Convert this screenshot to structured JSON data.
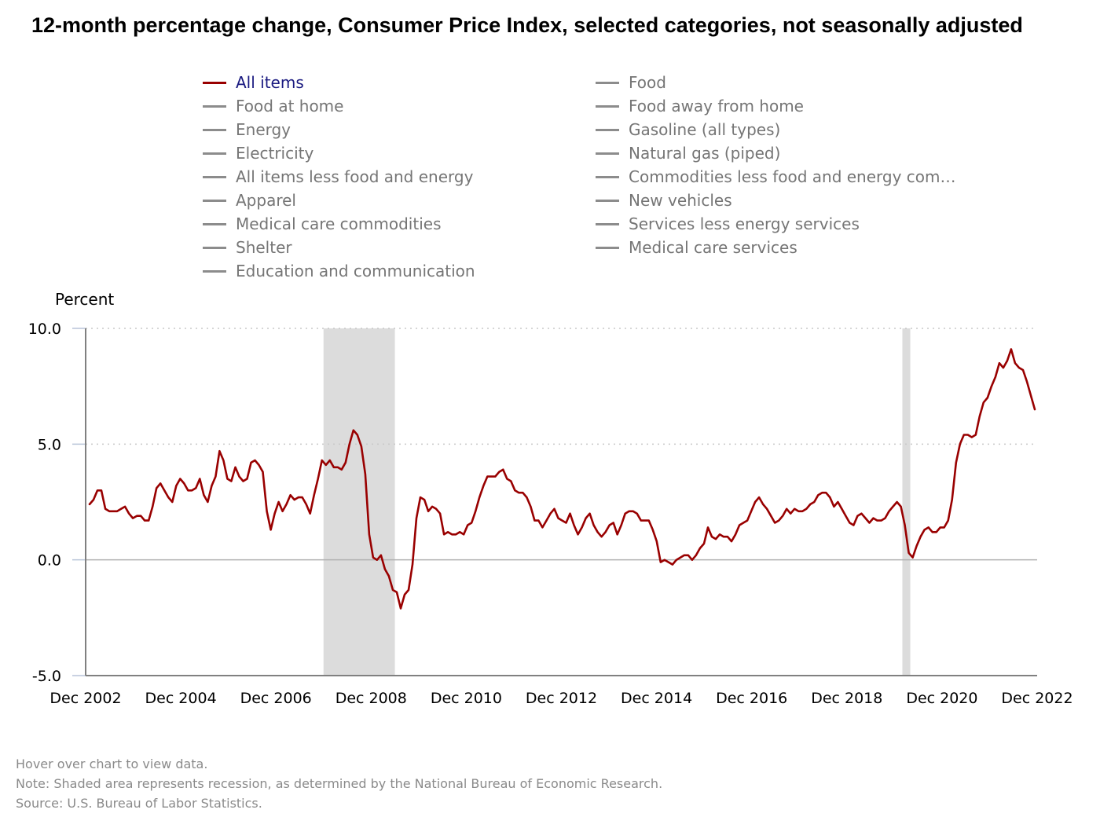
{
  "title": "12-month percentage change, Consumer Price Index, selected categories, not seasonally adjusted",
  "legend": {
    "items": [
      {
        "label": "All items",
        "active": true
      },
      {
        "label": "Food",
        "active": false
      },
      {
        "label": "Food at home",
        "active": false
      },
      {
        "label": "Food away from home",
        "active": false
      },
      {
        "label": "Energy",
        "active": false
      },
      {
        "label": "Gasoline (all types)",
        "active": false
      },
      {
        "label": "Electricity",
        "active": false
      },
      {
        "label": "Natural gas (piped)",
        "active": false
      },
      {
        "label": "All items less food and energy",
        "active": false
      },
      {
        "label": "Commodities less food and energy com…",
        "active": false
      },
      {
        "label": "Apparel",
        "active": false
      },
      {
        "label": "New vehicles",
        "active": false
      },
      {
        "label": "Medical care commodities",
        "active": false
      },
      {
        "label": "Services less energy services",
        "active": false
      },
      {
        "label": "Shelter",
        "active": false
      },
      {
        "label": "Medical care services",
        "active": false
      },
      {
        "label": "Education and communication",
        "active": false
      }
    ]
  },
  "footer": {
    "hover": "Hover over chart to view data.",
    "note": "Note: Shaded area represents recession, as determined by the National Bureau of Economic Research.",
    "source": "Source: U.S. Bureau of Labor Statistics."
  },
  "chart_data": {
    "type": "line",
    "title": "12-month percentage change, Consumer Price Index, selected categories, not seasonally adjusted",
    "ylabel": "Percent",
    "xlabel": "",
    "ylim": [
      -5.0,
      10.0
    ],
    "yticks": [
      "10.0",
      "5.0",
      "0.0",
      "-5.0"
    ],
    "ytick_values": [
      10.0,
      5.0,
      0.0,
      -5.0
    ],
    "xticks": [
      "Dec 2002",
      "Dec 2004",
      "Dec 2006",
      "Dec 2008",
      "Dec 2010",
      "Dec 2012",
      "Dec 2014",
      "Dec 2016",
      "Dec 2018",
      "Dec 2020",
      "Dec 2022"
    ],
    "x_start": "Dec 2002",
    "x_end": "Dec 2022",
    "grid": "horizontal dotted at 5.0 and 10.0; solid zero line",
    "recessions": [
      {
        "start": "Dec 2007",
        "end": "Jun 2009"
      },
      {
        "start": "Feb 2020",
        "end": "Apr 2020"
      }
    ],
    "colors": {
      "all_items": "#990000",
      "inactive": "#8c8c8c",
      "recession": "#dcdcdc",
      "axis": "#808080",
      "grid": "#c8c8c8"
    },
    "series": [
      {
        "name": "All items",
        "values": [
          2.4,
          2.6,
          3.0,
          3.0,
          2.2,
          2.1,
          2.1,
          2.1,
          2.2,
          2.3,
          2.0,
          1.8,
          1.9,
          1.9,
          1.7,
          1.7,
          2.3,
          3.1,
          3.3,
          3.0,
          2.7,
          2.5,
          3.2,
          3.5,
          3.3,
          3.0,
          3.0,
          3.1,
          3.5,
          2.8,
          2.5,
          3.2,
          3.6,
          4.7,
          4.3,
          3.5,
          3.4,
          4.0,
          3.6,
          3.4,
          3.5,
          4.2,
          4.3,
          4.1,
          3.8,
          2.1,
          1.3,
          2.0,
          2.5,
          2.1,
          2.4,
          2.8,
          2.6,
          2.7,
          2.7,
          2.4,
          2.0,
          2.8,
          3.5,
          4.3,
          4.1,
          4.3,
          4.0,
          4.0,
          3.9,
          4.2,
          5.0,
          5.6,
          5.4,
          4.9,
          3.7,
          1.1,
          0.1,
          0.0,
          0.2,
          -0.4,
          -0.7,
          -1.3,
          -1.4,
          -2.1,
          -1.5,
          -1.3,
          -0.2,
          1.8,
          2.7,
          2.6,
          2.1,
          2.3,
          2.2,
          2.0,
          1.1,
          1.2,
          1.1,
          1.1,
          1.2,
          1.1,
          1.5,
          1.6,
          2.1,
          2.7,
          3.2,
          3.6,
          3.6,
          3.6,
          3.8,
          3.9,
          3.5,
          3.4,
          3.0,
          2.9,
          2.9,
          2.7,
          2.3,
          1.7,
          1.7,
          1.4,
          1.7,
          2.0,
          2.2,
          1.8,
          1.7,
          1.6,
          2.0,
          1.5,
          1.1,
          1.4,
          1.8,
          2.0,
          1.5,
          1.2,
          1.0,
          1.2,
          1.5,
          1.6,
          1.1,
          1.5,
          2.0,
          2.1,
          2.1,
          2.0,
          1.7,
          1.7,
          1.7,
          1.3,
          0.8,
          -0.1,
          0.0,
          -0.1,
          -0.2,
          0.0,
          0.1,
          0.2,
          0.2,
          0.0,
          0.2,
          0.5,
          0.7,
          1.4,
          1.0,
          0.9,
          1.1,
          1.0,
          1.0,
          0.8,
          1.1,
          1.5,
          1.6,
          1.7,
          2.1,
          2.5,
          2.7,
          2.4,
          2.2,
          1.9,
          1.6,
          1.7,
          1.9,
          2.2,
          2.0,
          2.2,
          2.1,
          2.1,
          2.2,
          2.4,
          2.5,
          2.8,
          2.9,
          2.9,
          2.7,
          2.3,
          2.5,
          2.2,
          1.9,
          1.6,
          1.5,
          1.9,
          2.0,
          1.8,
          1.6,
          1.8,
          1.7,
          1.7,
          1.8,
          2.1,
          2.3,
          2.5,
          2.3,
          1.5,
          0.3,
          0.1,
          0.6,
          1.0,
          1.3,
          1.4,
          1.2,
          1.2,
          1.4,
          1.4,
          1.7,
          2.6,
          4.2,
          5.0,
          5.4,
          5.4,
          5.3,
          5.4,
          6.2,
          6.8,
          7.0,
          7.5,
          7.9,
          8.5,
          8.3,
          8.6,
          9.1,
          8.5,
          8.3,
          8.2,
          7.7,
          7.1,
          6.5
        ]
      }
    ]
  }
}
